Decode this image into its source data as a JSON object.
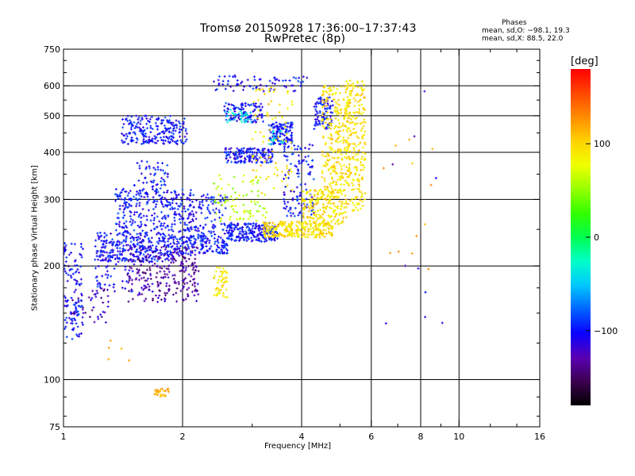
{
  "chart_data": {
    "type": "scatter",
    "title": "Tromsø 20150928 17:36:00–17:37:43",
    "subtitle": "RwPretec (8p)",
    "xlabel": "Frequency [MHz]",
    "ylabel": "Stationary phase Virtual Height [km]",
    "x_scale": "log",
    "y_scale": "log",
    "xlim": [
      1,
      16
    ],
    "ylim": [
      75,
      750
    ],
    "x_ticks": [
      1,
      2,
      4,
      6,
      8,
      10,
      16
    ],
    "x_tick_labels": [
      "1",
      "2",
      "4",
      "6",
      "8",
      "10",
      "16"
    ],
    "x_grid": [
      2,
      4,
      6,
      8,
      10
    ],
    "y_ticks": [
      75,
      100,
      200,
      300,
      400,
      500,
      600,
      750
    ],
    "y_tick_labels": [
      "75",
      "100",
      "200",
      "300",
      "400",
      "500",
      "600",
      "750"
    ],
    "y_grid": [
      100,
      200,
      300,
      400,
      500,
      600
    ],
    "grid": true,
    "legend": {
      "heading": "Phases",
      "line1": "mean, sd,O: −98.1, 19.3",
      "line2": "mean, sd,X:  88.5, 22.0"
    },
    "colorbar": {
      "label": "[deg]",
      "range": [
        -180,
        180
      ],
      "ticks": [
        100,
        0,
        -100
      ],
      "tick_labels": [
        "100",
        "0",
        "−100"
      ],
      "colormap": [
        "#000000",
        "#3c0050",
        "#5a00b4",
        "#0a00ff",
        "#0064ff",
        "#00c8ff",
        "#00ffc8",
        "#00ff50",
        "#32ff00",
        "#96ff00",
        "#f0ff00",
        "#ffd200",
        "#ff8c00",
        "#ff4600",
        "#ff0000"
      ]
    },
    "series": [
      {
        "color_value": -100,
        "clusters": [
          {
            "x": [
              1.0,
              1.12
            ],
            "y": [
              128,
              230
            ],
            "n": 120
          },
          {
            "x": [
              1.2,
              1.9
            ],
            "y": [
              205,
              245
            ],
            "n": 320
          },
          {
            "x": [
              1.35,
              2.1
            ],
            "y": [
              245,
              320
            ],
            "n": 260
          },
          {
            "x": [
              1.4,
              2.05
            ],
            "y": [
              420,
              500
            ],
            "n": 220
          },
          {
            "x": [
              1.5,
              1.85
            ],
            "y": [
              310,
              380
            ],
            "n": 60
          },
          {
            "x": [
              1.9,
              2.6
            ],
            "y": [
              215,
              240
            ],
            "n": 160
          },
          {
            "x": [
              2.05,
              2.6
            ],
            "y": [
              240,
              310
            ],
            "n": 120
          },
          {
            "x": [
              2.6,
              3.5
            ],
            "y": [
              232,
              260
            ],
            "n": 220
          },
          {
            "x": [
              2.55,
              3.4
            ],
            "y": [
              375,
              410
            ],
            "n": 160
          },
          {
            "x": [
              2.55,
              3.2
            ],
            "y": [
              480,
              540
            ],
            "n": 110
          },
          {
            "x": [
              3.3,
              3.8
            ],
            "y": [
              420,
              480
            ],
            "n": 120
          },
          {
            "x": [
              3.6,
              4.3
            ],
            "y": [
              270,
              420
            ],
            "n": 120
          },
          {
            "x": [
              4.3,
              4.8
            ],
            "y": [
              460,
              560
            ],
            "n": 90
          },
          {
            "x": [
              2.4,
              4.2
            ],
            "y": [
              580,
              640
            ],
            "n": 70
          },
          {
            "x": [
              1.2,
              1.5
            ],
            "y": [
              170,
              205
            ],
            "n": 40
          }
        ]
      },
      {
        "color_value": -130,
        "clusters": [
          {
            "x": [
              1.45,
              2.2
            ],
            "y": [
              160,
              225
            ],
            "n": 260
          },
          {
            "x": [
              1.05,
              1.3
            ],
            "y": [
              140,
              175
            ],
            "n": 40
          }
        ]
      },
      {
        "color_value": 95,
        "clusters": [
          {
            "x": [
              3.2,
              4.8
            ],
            "y": [
              238,
              262
            ],
            "n": 260
          },
          {
            "x": [
              4.0,
              5.2
            ],
            "y": [
              258,
              320
            ],
            "n": 200
          },
          {
            "x": [
              4.5,
              5.3
            ],
            "y": [
              320,
              600
            ],
            "n": 260
          },
          {
            "x": [
              5.2,
              5.8
            ],
            "y": [
              280,
              620
            ],
            "n": 220
          },
          {
            "x": [
              2.4,
              2.6
            ],
            "y": [
              165,
              200
            ],
            "n": 50
          },
          {
            "x": [
              3.0,
              3.8
            ],
            "y": [
              310,
              600
            ],
            "n": 80
          }
        ]
      },
      {
        "color_value": 60,
        "clusters": [
          {
            "x": [
              2.4,
              3.3
            ],
            "y": [
              262,
              350
            ],
            "n": 80
          }
        ]
      },
      {
        "color_value": -40,
        "clusters": [
          {
            "x": [
              2.55,
              3.0
            ],
            "y": [
              480,
              520
            ],
            "n": 30
          },
          {
            "x": [
              3.3,
              3.6
            ],
            "y": [
              420,
              460
            ],
            "n": 15
          }
        ]
      },
      {
        "color_value": 120,
        "clusters": [
          {
            "x": [
              1.7,
              1.85
            ],
            "y": [
              90,
              95
            ],
            "n": 25
          },
          {
            "x": [
              6.4,
              9.2
            ],
            "y": [
              160,
              500
            ],
            "n": 12
          },
          {
            "x": [
              1.3,
              1.5
            ],
            "y": [
              112,
              130
            ],
            "n": 5
          }
        ]
      },
      {
        "color_value": -120,
        "clusters": [
          {
            "x": [
              6.4,
              9.2
            ],
            "y": [
              130,
              600
            ],
            "n": 10
          }
        ]
      }
    ]
  }
}
